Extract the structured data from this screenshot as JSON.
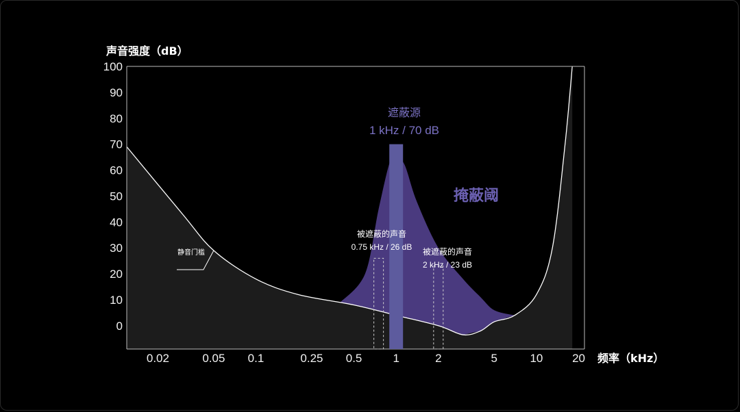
{
  "colors": {
    "background": "#000000",
    "quiet_fill": "#1c1c1c",
    "masking_fill": "#4a3a7f",
    "masker_bar": "#5d5b9e",
    "curve": "#ffffff",
    "accent_text": "#7b72c4"
  },
  "chart_data": {
    "type": "area",
    "ylabel": "声音强度（dB）",
    "xlabel": "频率（kHz）",
    "x_scale": "log",
    "xlim": [
      0.012,
      22
    ],
    "ylim": [
      -9,
      100
    ],
    "yticks": [
      "100",
      "90",
      "80",
      "70",
      "60",
      "50",
      "40",
      "30",
      "20",
      "10",
      "0"
    ],
    "ytick_values": [
      100,
      90,
      80,
      70,
      60,
      50,
      40,
      30,
      20,
      10,
      0
    ],
    "xticks": [
      "0.02",
      "0.05",
      "0.1",
      "0.25",
      "0.5",
      "1",
      "2",
      "5",
      "10",
      "20"
    ],
    "xtick_values": [
      0.02,
      0.05,
      0.1,
      0.25,
      0.5,
      1,
      2,
      5,
      10,
      20
    ],
    "quiet_threshold": {
      "label": "静音门槛",
      "points": [
        [
          0.012,
          69
        ],
        [
          0.03,
          43
        ],
        [
          0.05,
          29
        ],
        [
          0.1,
          18
        ],
        [
          0.2,
          12
        ],
        [
          0.5,
          8
        ],
        [
          1,
          4
        ],
        [
          2,
          0
        ],
        [
          3,
          -3.5
        ],
        [
          4,
          -2
        ],
        [
          5,
          1.5
        ],
        [
          7,
          4
        ],
        [
          10,
          12
        ],
        [
          13,
          30
        ],
        [
          16,
          70
        ],
        [
          18,
          100
        ]
      ]
    },
    "masking_threshold": {
      "label": "掩蔽阈",
      "points": [
        [
          0.4,
          9
        ],
        [
          0.6,
          20
        ],
        [
          0.75,
          45
        ],
        [
          0.9,
          63
        ],
        [
          1,
          65
        ],
        [
          1.15,
          62
        ],
        [
          1.4,
          48
        ],
        [
          2,
          30
        ],
        [
          3,
          18
        ],
        [
          4,
          11
        ],
        [
          5,
          6
        ],
        [
          7,
          4
        ]
      ]
    },
    "masker": {
      "label": "遮蔽源",
      "value_label": "1 kHz / 70 dB",
      "frequency_khz": 1,
      "level_db": 70
    },
    "masked_sounds": [
      {
        "label": "被遮蔽的声音",
        "value_label": "0.75 kHz / 26 dB",
        "frequency_khz": 0.75,
        "level_db": 26
      },
      {
        "label": "被遮蔽的声音",
        "value_label": "2 kHz / 23 dB",
        "frequency_khz": 2,
        "level_db": 23
      }
    ]
  }
}
